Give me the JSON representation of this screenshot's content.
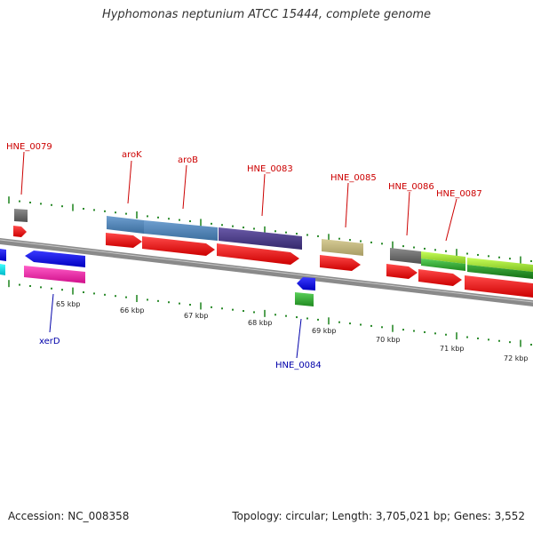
{
  "title": "Hyphomonas neptunium ATCC 15444, complete genome",
  "footer": {
    "accession": "Accession: NC_008358",
    "summary": "Topology: circular; Length: 3,705,021 bp; Genes: 3,552"
  },
  "scale_labels": [
    "65 kbp",
    "66 kbp",
    "67 kbp",
    "68 kbp",
    "69 kbp",
    "70 kbp",
    "71 kbp",
    "72 kbp"
  ],
  "gene_labels": [
    {
      "text": "HNE_0079",
      "color": "#cc0000"
    },
    {
      "text": "aroK",
      "color": "#cc0000"
    },
    {
      "text": "aroB",
      "color": "#cc0000"
    },
    {
      "text": "HNE_0083",
      "color": "#cc0000"
    },
    {
      "text": "HNE_0085",
      "color": "#cc0000"
    },
    {
      "text": "HNE_0086",
      "color": "#cc0000"
    },
    {
      "text": "HNE_0087",
      "color": "#cc0000"
    },
    {
      "text": "xerD",
      "color": "#0000aa"
    },
    {
      "text": "HNE_0084",
      "color": "#0000aa"
    }
  ],
  "colors": {
    "backbone": "#8a8a8a",
    "cds": "#ee0000",
    "tick_green": "#2a8a2a",
    "forward_label": "#cc0000",
    "reverse_label": "#0000aa"
  }
}
